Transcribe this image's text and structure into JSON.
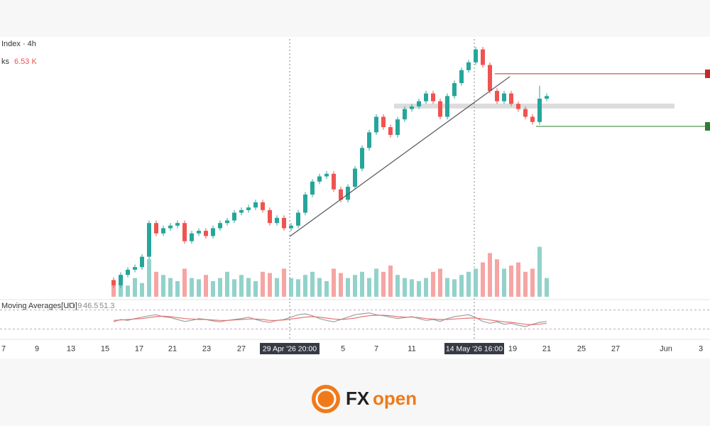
{
  "chart_data": {
    "type": "candlestick",
    "symbol_label": "Index · 4h",
    "volume_label": "ks",
    "volume_value": "6.53 K",
    "indicator_label": "Moving Averages[UO]",
    "indicator_values": [
      "51.9",
      "46.5",
      "51.3"
    ],
    "x": [
      0,
      1,
      2,
      3,
      4,
      5,
      6,
      7,
      8,
      9,
      10,
      11,
      12,
      13,
      14,
      15,
      16,
      17,
      18,
      19,
      20,
      21,
      22,
      23,
      24,
      25,
      26,
      27,
      28,
      29,
      30,
      31,
      32,
      33,
      34,
      35,
      36,
      37,
      38,
      39,
      40,
      41,
      42,
      43,
      44,
      45,
      46,
      47,
      48,
      49,
      50,
      51,
      52,
      53,
      54,
      55,
      56,
      57,
      58,
      59,
      60,
      61
    ],
    "open": [
      7,
      5,
      9,
      11,
      12,
      16,
      29,
      25,
      27,
      28,
      29,
      22,
      25,
      26,
      24,
      27,
      29,
      30,
      33,
      34,
      35,
      37,
      34,
      29,
      31,
      27,
      28,
      33,
      40,
      45,
      47,
      48,
      42,
      38,
      43,
      50,
      58,
      64,
      70,
      66,
      63,
      69,
      73,
      74,
      76,
      79,
      76,
      70,
      78,
      83,
      88,
      91,
      96,
      90,
      80,
      76,
      79,
      75,
      73,
      70,
      68,
      77
    ],
    "high": [
      8,
      10,
      12,
      13,
      17,
      30,
      30,
      28,
      29,
      30,
      30,
      26,
      27,
      27,
      28,
      30,
      31,
      34,
      35,
      36,
      38,
      38,
      35,
      32,
      32,
      29,
      34,
      41,
      46,
      48,
      49,
      49,
      43,
      44,
      51,
      59,
      65,
      71,
      71,
      67,
      70,
      74,
      75,
      77,
      80,
      80,
      77,
      79,
      84,
      89,
      92,
      97,
      97,
      91,
      81,
      80,
      80,
      76,
      74,
      71,
      82,
      79
    ],
    "low": [
      4,
      4,
      8,
      10,
      11,
      15,
      24,
      24,
      26,
      27,
      21,
      21,
      24,
      23,
      23,
      26,
      28,
      29,
      32,
      33,
      34,
      33,
      28,
      28,
      26,
      26,
      27,
      32,
      39,
      44,
      46,
      41,
      37,
      37,
      42,
      49,
      57,
      63,
      65,
      62,
      62,
      68,
      72,
      73,
      75,
      75,
      69,
      69,
      77,
      82,
      87,
      90,
      89,
      79,
      75,
      75,
      74,
      72,
      69,
      67,
      67,
      76
    ],
    "close": [
      5,
      9,
      11,
      12,
      16,
      29,
      25,
      27,
      28,
      29,
      22,
      25,
      26,
      24,
      27,
      29,
      30,
      33,
      34,
      35,
      37,
      34,
      29,
      31,
      27,
      28,
      33,
      40,
      45,
      47,
      48,
      42,
      38,
      43,
      50,
      58,
      64,
      70,
      66,
      63,
      69,
      73,
      74,
      76,
      79,
      76,
      70,
      78,
      83,
      88,
      91,
      96,
      90,
      80,
      76,
      79,
      75,
      73,
      70,
      68,
      77,
      78
    ],
    "volume": [
      20,
      25,
      18,
      30,
      22,
      60,
      40,
      35,
      30,
      25,
      45,
      30,
      28,
      35,
      25,
      30,
      40,
      28,
      35,
      30,
      25,
      40,
      38,
      30,
      45,
      30,
      28,
      35,
      40,
      30,
      25,
      45,
      38,
      30,
      35,
      40,
      30,
      45,
      40,
      50,
      35,
      30,
      28,
      25,
      30,
      40,
      45,
      30,
      28,
      35,
      40,
      45,
      55,
      70,
      60,
      45,
      50,
      55,
      40,
      45,
      80,
      30
    ],
    "up_color": "#26a69a",
    "down_color": "#ef5350",
    "volume_up_color": "#92d2cb",
    "volume_down_color": "#f5a5a3",
    "xlim": [
      -16,
      84
    ],
    "ylim": [
      0,
      100
    ],
    "volume_lim": [
      0,
      100
    ],
    "xticks": [
      {
        "value": -15.5,
        "label": "7"
      },
      {
        "value": -10.8,
        "label": "9"
      },
      {
        "value": -6,
        "label": "13"
      },
      {
        "value": -1.2,
        "label": "15"
      },
      {
        "value": 3.6,
        "label": "17"
      },
      {
        "value": 8.3,
        "label": "21"
      },
      {
        "value": 13.1,
        "label": "23"
      },
      {
        "value": 18,
        "label": "27"
      },
      {
        "value": 32.3,
        "label": "5"
      },
      {
        "value": 37,
        "label": "7"
      },
      {
        "value": 42,
        "label": "11"
      },
      {
        "value": 56.2,
        "label": "19"
      },
      {
        "value": 61,
        "label": "21"
      },
      {
        "value": 65.9,
        "label": "25"
      },
      {
        "value": 70.7,
        "label": "27"
      },
      {
        "value": 77.8,
        "label": "Jun"
      },
      {
        "value": 82.7,
        "label": "3"
      }
    ],
    "crosshairs": [
      {
        "x": 24.8,
        "label": "29 Apr '26   20:00"
      },
      {
        "x": 50.8,
        "label": "14 May '26   16:00"
      }
    ],
    "trendline": {
      "x": [
        24.8,
        55.8
      ],
      "y": [
        23.8,
        85.5
      ],
      "color": "#555555"
    },
    "levels": [
      {
        "x": 53.7,
        "y": 86.6,
        "color": "#c62828"
      },
      {
        "x": 59.5,
        "y": 66.3,
        "color": "#2e7d32"
      }
    ],
    "zone": {
      "x": [
        39.5,
        79
      ],
      "y": [
        73.2,
        75.1
      ],
      "color": "#dcdcdc"
    },
    "indicator": {
      "ylim": [
        20,
        80
      ],
      "bands": [
        70,
        30
      ],
      "series": [
        {
          "color": "#9e9e9e",
          "values": [
            45,
            50,
            48,
            52,
            55,
            58,
            60,
            56,
            54,
            50,
            46,
            48,
            52,
            50,
            47,
            45,
            48,
            50,
            52,
            55,
            50,
            46,
            44,
            48,
            50,
            55,
            60,
            62,
            58,
            52,
            48,
            45,
            50,
            55,
            60,
            62,
            64,
            60,
            58,
            55,
            52,
            54,
            56,
            52,
            48,
            50,
            46,
            52,
            56,
            58,
            60,
            54,
            46,
            42,
            45,
            40,
            42,
            38,
            35,
            40,
            44,
            46
          ]
        },
        {
          "color": "#e57373",
          "values": [
            48,
            49,
            50,
            51,
            52,
            54,
            56,
            57,
            56,
            54,
            52,
            51,
            50,
            50,
            49,
            48,
            48,
            49,
            50,
            51,
            51,
            50,
            48,
            48,
            49,
            51,
            53,
            55,
            56,
            55,
            53,
            51,
            50,
            51,
            53,
            56,
            58,
            59,
            59,
            58,
            56,
            55,
            55,
            54,
            52,
            51,
            50,
            50,
            51,
            52,
            53,
            53,
            51,
            49,
            47,
            45,
            44,
            42,
            40,
            39,
            40,
            42
          ]
        }
      ]
    }
  },
  "brand": {
    "left": "FX",
    "right": "open"
  }
}
